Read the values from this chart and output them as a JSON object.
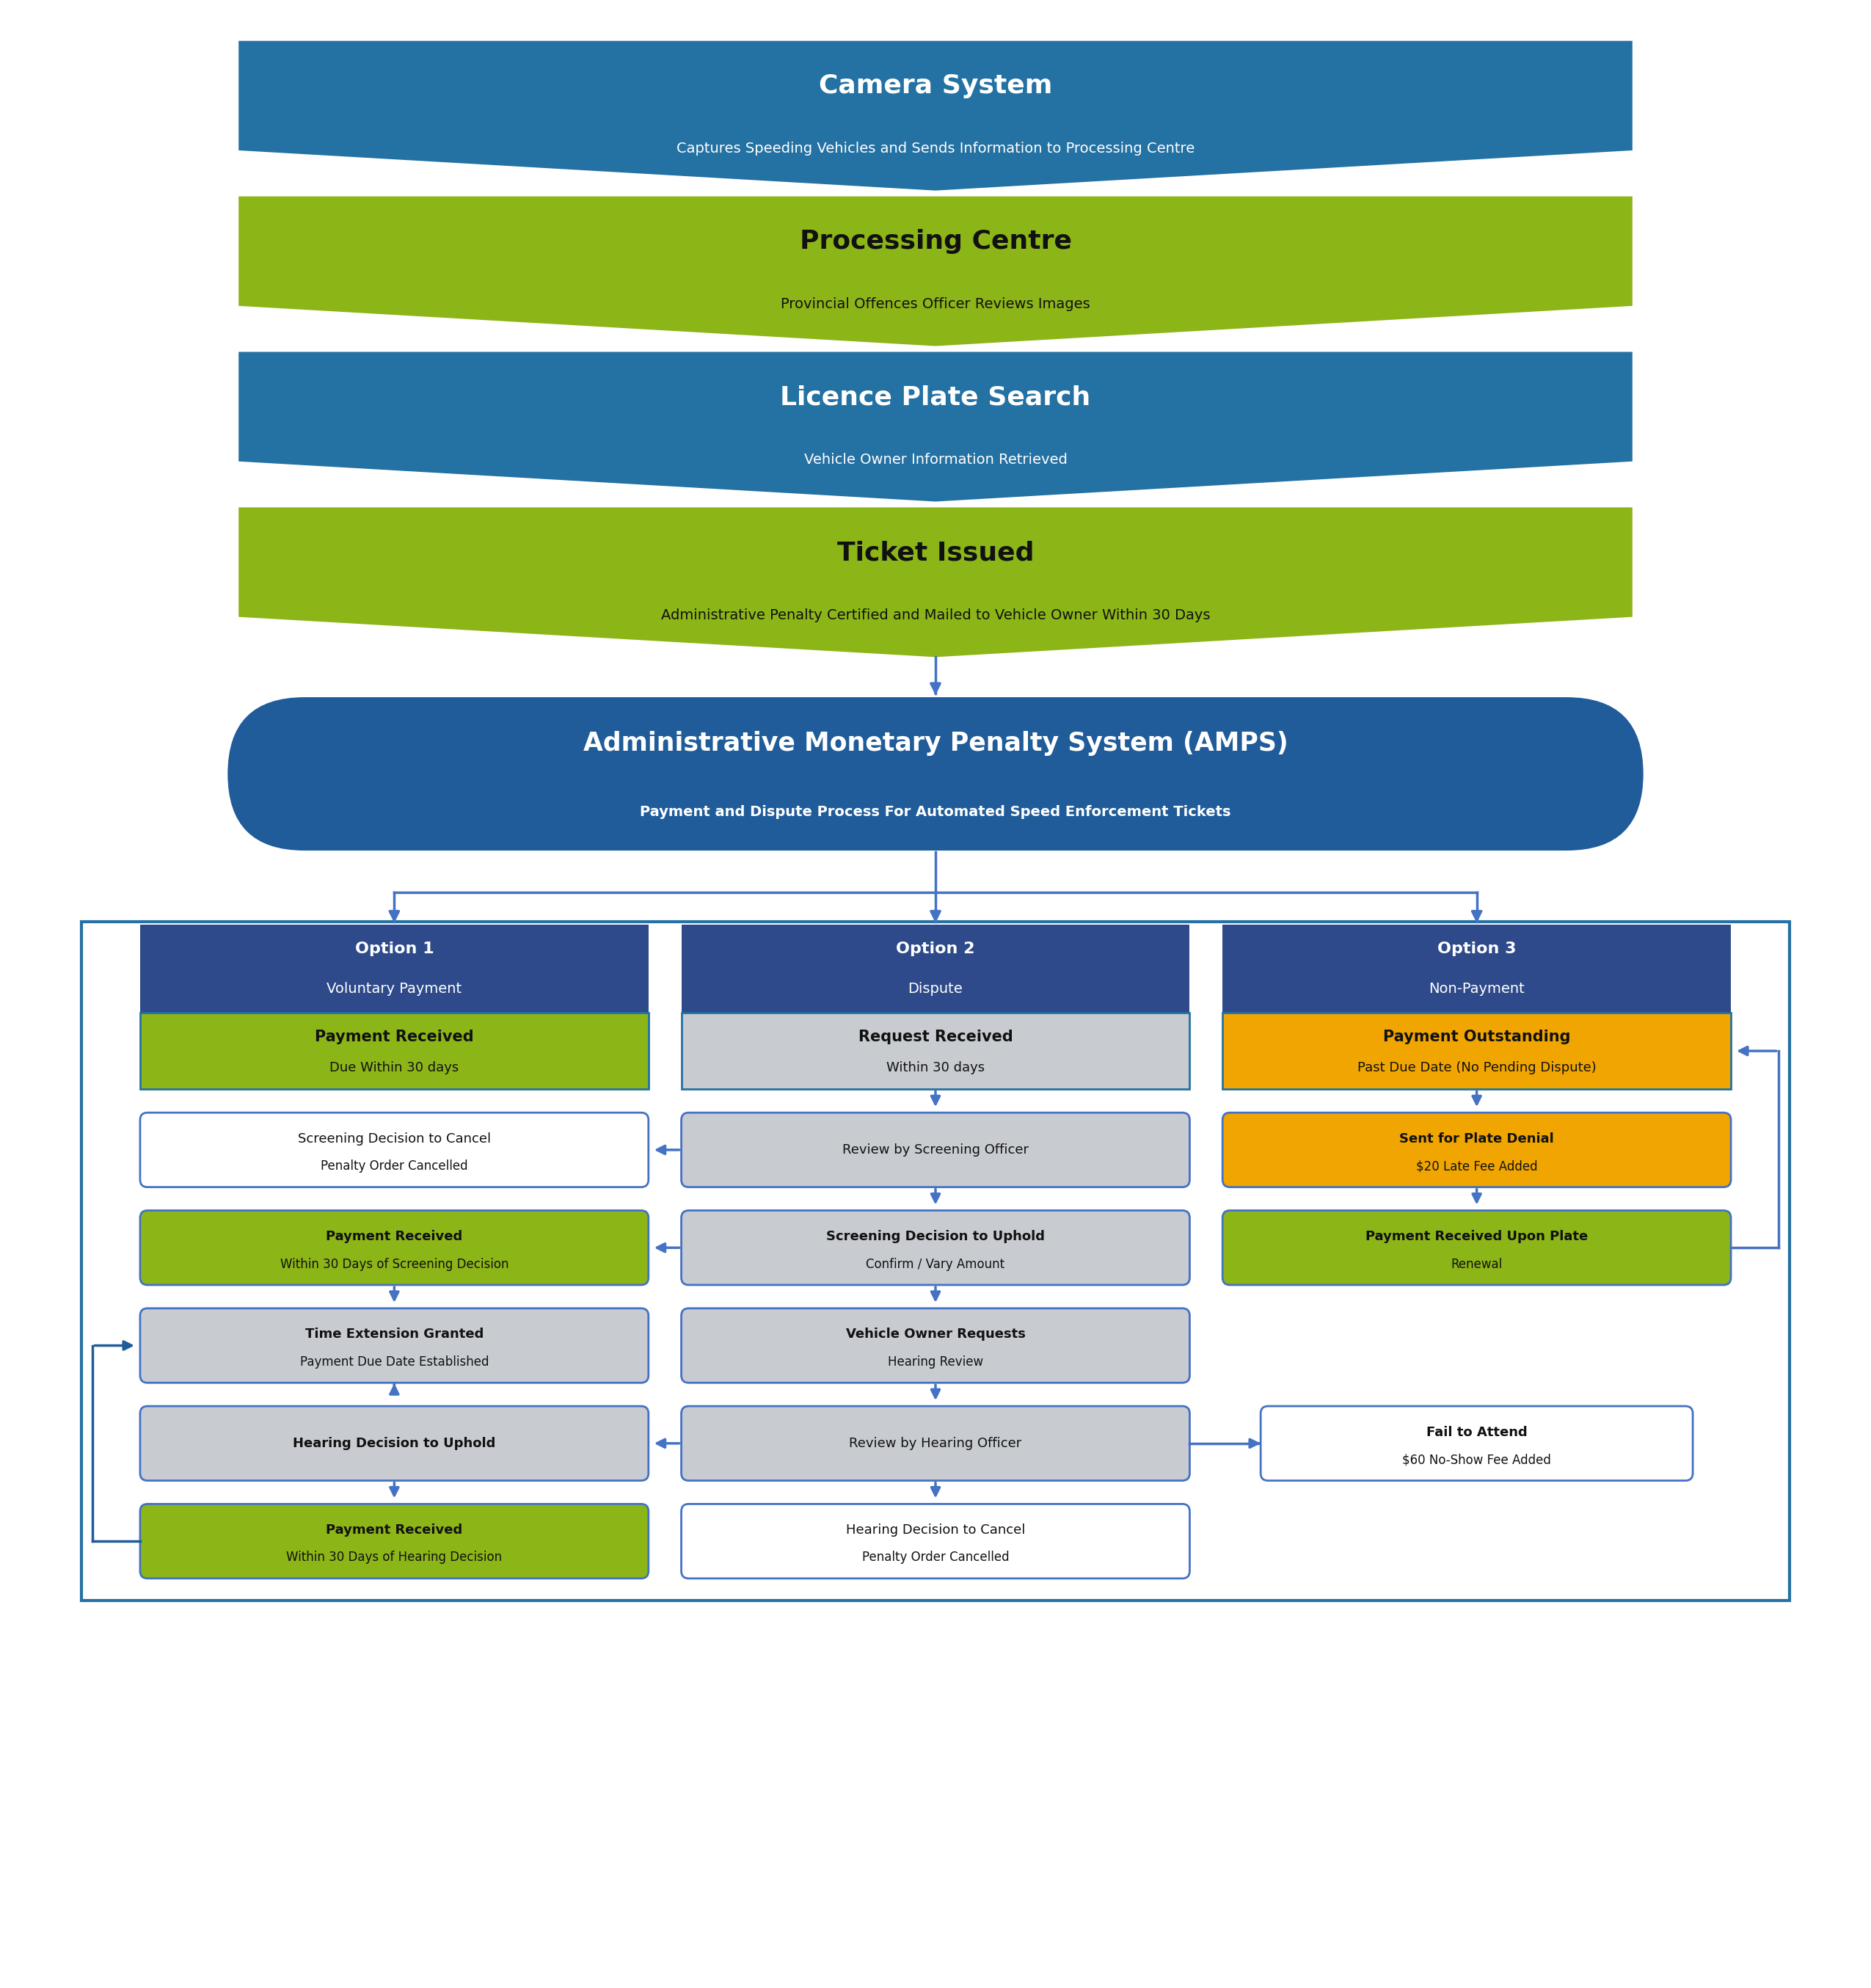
{
  "bg_color": "#ffffff",
  "blue_dark": "#1F5C99",
  "blue_mid": "#2471A3",
  "blue_medium": "#2E4A8A",
  "green_olive": "#8CB517",
  "orange": "#F0A500",
  "gray_light": "#C8CBD0",
  "white": "#ffffff",
  "black": "#111111",
  "arrow_color": "#4472C4",
  "top_shapes": [
    {
      "title": "Camera System",
      "subtitle": "Captures Speeding Vehicles and Sends Information to Processing Centre",
      "color": "#2471A3",
      "text_color": "#ffffff"
    },
    {
      "title": "Processing Centre",
      "subtitle": "Provincial Offences Officer Reviews Images",
      "color": "#8CB517",
      "text_color": "#111111"
    },
    {
      "title": "Licence Plate Search",
      "subtitle": "Vehicle Owner Information Retrieved",
      "color": "#2471A3",
      "text_color": "#ffffff"
    },
    {
      "title": "Ticket Issued",
      "subtitle": "Administrative Penalty Certified and Mailed to Vehicle Owner Within 30 Days",
      "color": "#8CB517",
      "text_color": "#111111"
    }
  ],
  "amps_title": "Administrative Monetary Penalty System (AMPS)",
  "amps_subtitle": "Payment and Dispute Process For Automated Speed Enforcement Tickets",
  "amps_color": "#1F5C99",
  "options": [
    {
      "header": "Option 1\nVoluntary Payment",
      "header_color": "#2E4A8A",
      "sub_text": "Payment Received\nDue Within 30 days",
      "sub_color": "#8CB517",
      "sub_text_color": "#111111",
      "header_text_color": "#ffffff"
    },
    {
      "header": "Option 2\nDispute",
      "header_color": "#2E4A8A",
      "sub_text": "Request Received\nWithin 30 days",
      "sub_color": "#C8CBD0",
      "sub_text_color": "#111111",
      "header_text_color": "#ffffff"
    },
    {
      "header": "Option 3\nNon-Payment",
      "header_color": "#2E4A8A",
      "sub_text": "Payment Outstanding\nPast Due Date (No Pending Dispute)",
      "sub_color": "#F0A500",
      "sub_text_color": "#111111",
      "header_text_color": "#ffffff"
    }
  ],
  "flow_boxes": {
    "col1": [
      {
        "text": "Screening Decision to Cancel\nPenalty Order Cancelled",
        "color": "#ffffff",
        "border": "#4472C4",
        "bold_first": false,
        "text_color": "#111111"
      },
      {
        "text": "Payment Received\nWithin 30 Days of Screening Decision",
        "color": "#8CB517",
        "border": "#4472C4",
        "bold_first": true,
        "text_color": "#111111"
      },
      {
        "text": "Time Extension Granted\nPayment Due Date Established",
        "color": "#C8CBD0",
        "border": "#4472C4",
        "bold_first": true,
        "text_color": "#111111"
      },
      {
        "text": "Hearing Decision to Uphold",
        "color": "#C8CBD0",
        "border": "#4472C4",
        "bold_first": true,
        "text_color": "#111111"
      },
      {
        "text": "Payment Received\nWithin 30 Days of Hearing Decision",
        "color": "#8CB517",
        "border": "#4472C4",
        "bold_first": true,
        "text_color": "#111111"
      }
    ],
    "col2": [
      {
        "text": "Review by Screening Officer",
        "color": "#C8CBD0",
        "border": "#4472C4",
        "bold_first": false,
        "text_color": "#111111"
      },
      {
        "text": "Screening Decision to Uphold\nConfirm / Vary Amount",
        "color": "#C8CBD0",
        "border": "#4472C4",
        "bold_first": true,
        "text_color": "#111111"
      },
      {
        "text": "Vehicle Owner Requests\nHearing Review",
        "color": "#C8CBD0",
        "border": "#4472C4",
        "bold_first": true,
        "text_color": "#111111"
      },
      {
        "text": "Review by Hearing Officer",
        "color": "#C8CBD0",
        "border": "#4472C4",
        "bold_first": false,
        "text_color": "#111111"
      },
      {
        "text": "Hearing Decision to Cancel\nPenalty Order Cancelled",
        "color": "#ffffff",
        "border": "#4472C4",
        "bold_first": false,
        "text_color": "#111111"
      }
    ],
    "col3": [
      {
        "text": "Sent for Plate Denial\n$20 Late Fee Added",
        "color": "#F0A500",
        "border": "#4472C4",
        "bold_first": true,
        "text_color": "#111111"
      },
      {
        "text": "Payment Received Upon Plate\nRenewal",
        "color": "#8CB517",
        "border": "#4472C4",
        "bold_first": true,
        "text_color": "#111111"
      }
    ]
  },
  "fail_to_attend": {
    "text": "Fail to Attend\n$60 No-Show Fee Added",
    "color": "#ffffff",
    "border": "#4472C4",
    "text_color": "#111111"
  },
  "outer_border_color": "#2471A3",
  "outer_border_lw": 3
}
